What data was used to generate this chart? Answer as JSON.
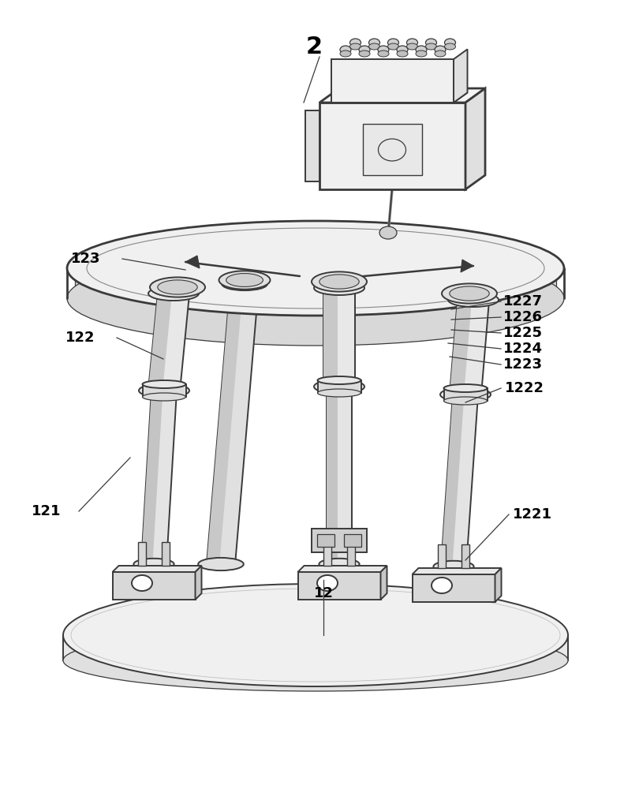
{
  "background_color": "#ffffff",
  "line_color": "#3a3a3a",
  "fig_width": 8.1,
  "fig_height": 10.0,
  "label_fontsize": 13,
  "label_fontsize_2": 20
}
